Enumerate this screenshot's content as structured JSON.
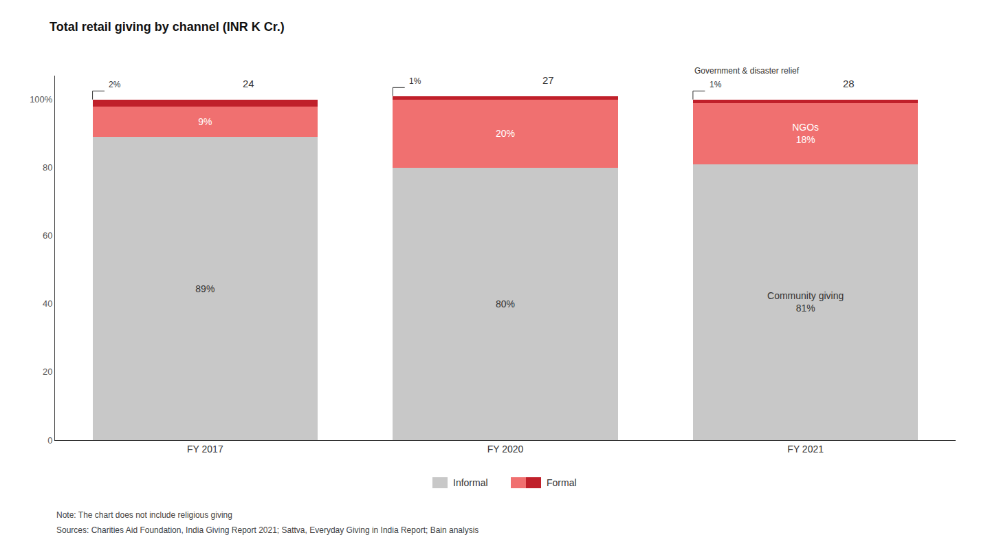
{
  "chart_data": {
    "type": "bar",
    "title": "Total retail giving by channel (INR K Cr.)",
    "categories": [
      "FY 2017",
      "FY 2020",
      "FY 2021"
    ],
    "stacked": true,
    "data_labels": true,
    "grid": false,
    "series": [
      {
        "name": "Community giving",
        "color": "#c8c8c8",
        "values": [
          89,
          80,
          81
        ],
        "value_labels": [
          "89%",
          "80%",
          "81%"
        ]
      },
      {
        "name": "NGOs",
        "color": "#f07070",
        "values": [
          9,
          20,
          18
        ],
        "value_labels": [
          "9%",
          "20%",
          "18%"
        ]
      },
      {
        "name": "Government & disaster relief",
        "color": "#c0202a",
        "values": [
          2,
          1,
          1
        ],
        "value_labels": [
          "2%",
          "1%",
          "1%"
        ]
      }
    ],
    "totals": [
      24,
      27,
      28
    ],
    "ylim": [
      0,
      107
    ],
    "yticks": [
      0,
      20,
      40,
      60,
      80,
      {
        "value": 100,
        "label": "100%"
      }
    ],
    "legend": "bottom",
    "legend_entries": [
      {
        "name": "Informal",
        "colors": [
          "#c8c8c8"
        ]
      },
      {
        "name": "Formal",
        "colors": [
          "#f07070",
          "#c0202a"
        ]
      }
    ],
    "note": "Note: The chart does not include religious giving",
    "source": "Sources: Charities Aid Foundation, India Giving Report 2021; Sattva, Everyday Giving in India Report; Bain analysis"
  }
}
